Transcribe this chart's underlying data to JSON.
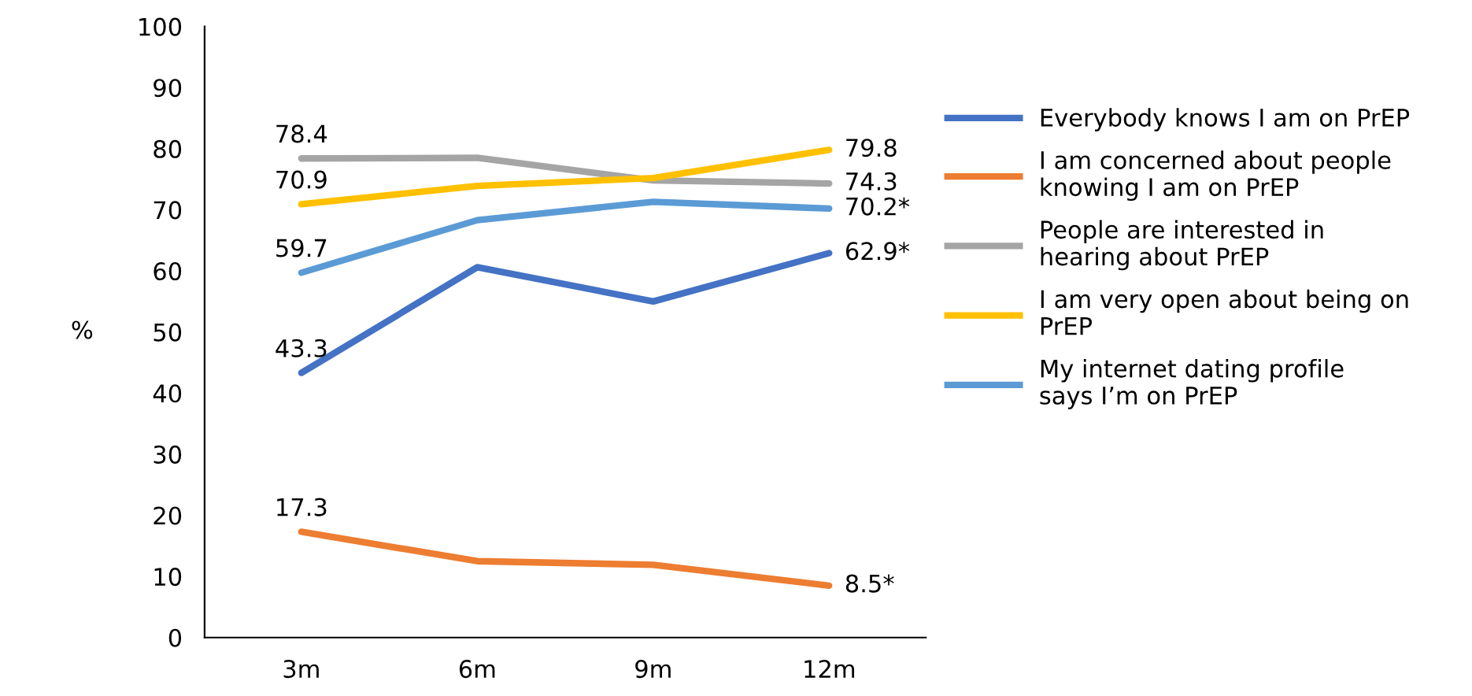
{
  "chart_data": {
    "type": "line",
    "ylabel": "%",
    "categories": [
      "3m",
      "6m",
      "9m",
      "12m"
    ],
    "series": [
      {
        "name": "Everybody knows I am on PrEP",
        "color": "#4472c4",
        "values": [
          43.3,
          60.6,
          55.0,
          62.9
        ],
        "value_labels": [
          "43.3",
          null,
          null,
          "62.9*"
        ]
      },
      {
        "name": "I am concerned about people knowing I am on PrEP",
        "color": "#ed7d31",
        "values": [
          17.3,
          12.5,
          11.9,
          8.5
        ],
        "value_labels": [
          "17.3",
          null,
          null,
          "8.5*"
        ]
      },
      {
        "name": "People are interested in hearing about PrEP",
        "color": "#a5a5a5",
        "values": [
          78.4,
          78.5,
          74.8,
          74.3
        ],
        "value_labels": [
          "78.4",
          null,
          null,
          "74.3"
        ]
      },
      {
        "name": "I am very open about being on PrEP",
        "color": "#ffc000",
        "values": [
          70.9,
          73.9,
          75.2,
          79.8
        ],
        "value_labels": [
          "70.9",
          null,
          null,
          "79.8"
        ]
      },
      {
        "name": "My internet dating profile says I’m on PrEP",
        "color": "#5b9bd5",
        "values": [
          59.7,
          68.3,
          71.3,
          70.2
        ],
        "value_labels": [
          "59.7",
          null,
          null,
          "70.2*"
        ]
      }
    ],
    "ylim": [
      0,
      100
    ],
    "yticks": [
      0,
      10,
      20,
      30,
      40,
      50,
      60,
      70,
      80,
      90,
      100
    ],
    "grid": false,
    "legend": "right",
    "marker": "none",
    "line_style": "solid"
  }
}
